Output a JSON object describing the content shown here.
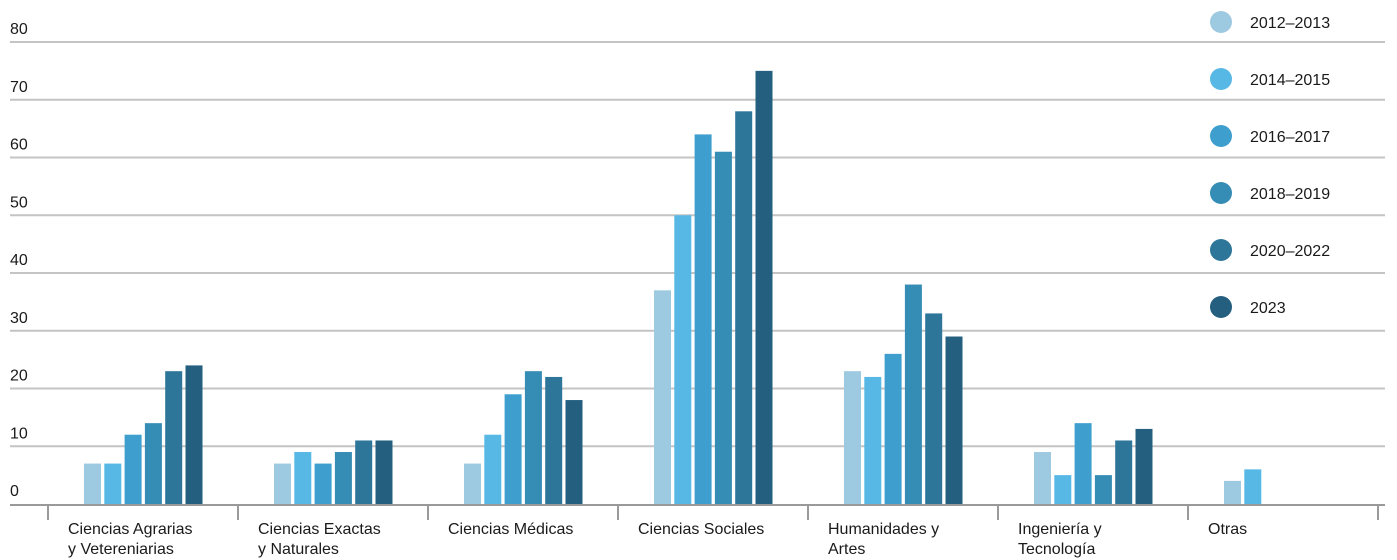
{
  "chart_data": {
    "type": "bar",
    "title": "",
    "xlabel": "",
    "ylabel": "",
    "ylim": [
      0,
      80
    ],
    "yticks": [
      0,
      10,
      20,
      30,
      40,
      50,
      60,
      70,
      80
    ],
    "grid": true,
    "legend_position": "top-right",
    "categories": [
      [
        "Ciencias Agrarias",
        "y Vetereniarias"
      ],
      [
        "Ciencias Exactas",
        "y Naturales"
      ],
      [
        "Ciencias Médicas"
      ],
      [
        "Ciencias Sociales"
      ],
      [
        "Humanidades y",
        "Artes"
      ],
      [
        "Ingeniería y",
        "Tecnología"
      ],
      [
        "Otras"
      ]
    ],
    "series": [
      {
        "name": "2012–2013",
        "color": "#9ecae1",
        "values": [
          7,
          7,
          7,
          37,
          23,
          9,
          4
        ]
      },
      {
        "name": "2014–2015",
        "color": "#57b8e6",
        "values": [
          7,
          9,
          12,
          50,
          22,
          5,
          6
        ]
      },
      {
        "name": "2016–2017",
        "color": "#3e9fcf",
        "values": [
          12,
          7,
          19,
          64,
          26,
          14,
          null
        ]
      },
      {
        "name": "2018–2019",
        "color": "#358cb4",
        "values": [
          14,
          9,
          23,
          61,
          38,
          5,
          null
        ]
      },
      {
        "name": "2020–2022",
        "color": "#2e7699",
        "values": [
          23,
          11,
          22,
          68,
          33,
          11,
          null
        ]
      },
      {
        "name": "2023",
        "color": "#245f80",
        "values": [
          24,
          11,
          18,
          75,
          29,
          13,
          null
        ]
      }
    ]
  }
}
